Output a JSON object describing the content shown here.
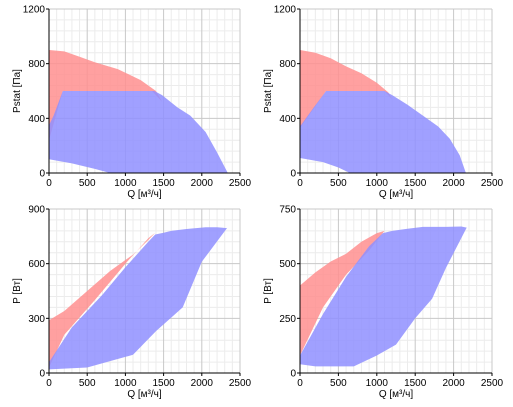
{
  "colors": {
    "red_fill": "#ff8f8f",
    "blue_fill": "#8f8fff",
    "grid_major": "#c8c8c8",
    "grid_minor": "#ececec",
    "axis": "#000000"
  },
  "chart_data": [
    {
      "type": "area",
      "xlabel": "Q [м³/ч]",
      "ylabel": "Pstat [Па]",
      "xlim": [
        0,
        2500
      ],
      "ylim": [
        0,
        1200
      ],
      "xticks": [
        0,
        500,
        1000,
        1500,
        2000,
        2500
      ],
      "yticks": [
        0,
        400,
        800,
        1200
      ],
      "grid": true,
      "series": [
        {
          "color": "red",
          "points": [
            [
              0,
              900
            ],
            [
              200,
              890
            ],
            [
              400,
              850
            ],
            [
              600,
              810
            ],
            [
              900,
              760
            ],
            [
              1200,
              680
            ],
            [
              1400,
              600
            ],
            [
              1480,
              520
            ],
            [
              1350,
              600
            ],
            [
              180,
              600
            ],
            [
              0,
              240
            ]
          ]
        },
        {
          "color": "blue",
          "points": [
            [
              0,
              100
            ],
            [
              300,
              70
            ],
            [
              600,
              30
            ],
            [
              800,
              0
            ],
            [
              2340,
              0
            ],
            [
              2200,
              150
            ],
            [
              2050,
              300
            ],
            [
              1850,
              420
            ],
            [
              1680,
              480
            ],
            [
              1480,
              570
            ],
            [
              1380,
              600
            ],
            [
              180,
              600
            ],
            [
              60,
              420
            ],
            [
              0,
              350
            ]
          ]
        }
      ]
    },
    {
      "type": "area",
      "xlabel": "Q [м³/ч]",
      "ylabel": "Pstat [Па]",
      "xlim": [
        0,
        2500
      ],
      "ylim": [
        0,
        1200
      ],
      "xticks": [
        0,
        500,
        1000,
        1500,
        2000,
        2500
      ],
      "yticks": [
        0,
        400,
        800,
        1200
      ],
      "grid": true,
      "series": [
        {
          "color": "red",
          "points": [
            [
              0,
              900
            ],
            [
              200,
              880
            ],
            [
              400,
              840
            ],
            [
              600,
              780
            ],
            [
              800,
              730
            ],
            [
              1000,
              660
            ],
            [
              1150,
              590
            ],
            [
              1200,
              540
            ],
            [
              1100,
              600
            ],
            [
              340,
              600
            ],
            [
              0,
              330
            ]
          ]
        },
        {
          "color": "blue",
          "points": [
            [
              0,
              110
            ],
            [
              300,
              80
            ],
            [
              500,
              40
            ],
            [
              650,
              0
            ],
            [
              2160,
              0
            ],
            [
              2080,
              130
            ],
            [
              1950,
              250
            ],
            [
              1800,
              340
            ],
            [
              1600,
              420
            ],
            [
              1400,
              500
            ],
            [
              1200,
              570
            ],
            [
              1100,
              600
            ],
            [
              340,
              600
            ],
            [
              180,
              480
            ],
            [
              0,
              340
            ]
          ]
        }
      ]
    },
    {
      "type": "area",
      "xlabel": "Q [м³/ч]",
      "ylabel": "P [Вт]",
      "xlim": [
        0,
        2500
      ],
      "ylim": [
        0,
        900
      ],
      "xticks": [
        0,
        500,
        1000,
        1500,
        2000,
        2500
      ],
      "yticks": [
        0,
        300,
        600,
        900
      ],
      "grid": true,
      "series": [
        {
          "color": "red",
          "points": [
            [
              0,
              290
            ],
            [
              200,
              340
            ],
            [
              500,
              450
            ],
            [
              800,
              560
            ],
            [
              1100,
              650
            ],
            [
              1300,
              730
            ],
            [
              1390,
              770
            ],
            [
              1300,
              740
            ],
            [
              1000,
              600
            ],
            [
              600,
              400
            ],
            [
              200,
              210
            ],
            [
              0,
              30
            ]
          ]
        },
        {
          "color": "blue",
          "points": [
            [
              0,
              20
            ],
            [
              500,
              30
            ],
            [
              1100,
              100
            ],
            [
              1400,
              230
            ],
            [
              1750,
              360
            ],
            [
              2000,
              610
            ],
            [
              2330,
              795
            ],
            [
              2200,
              800
            ],
            [
              2050,
              800
            ],
            [
              1800,
              790
            ],
            [
              1600,
              780
            ],
            [
              1500,
              770
            ],
            [
              1390,
              760
            ],
            [
              1300,
              720
            ],
            [
              1000,
              580
            ],
            [
              700,
              430
            ],
            [
              300,
              250
            ],
            [
              0,
              60
            ]
          ]
        }
      ]
    },
    {
      "type": "area",
      "xlabel": "Q [м³/ч]",
      "ylabel": "P [Вт]",
      "xlim": [
        0,
        2500
      ],
      "ylim": [
        0,
        750
      ],
      "xticks": [
        0,
        500,
        1000,
        1500,
        2000,
        2500
      ],
      "yticks": [
        0,
        250,
        500,
        750
      ],
      "grid": true,
      "series": [
        {
          "color": "red",
          "points": [
            [
              0,
              400
            ],
            [
              200,
              460
            ],
            [
              400,
              510
            ],
            [
              600,
              545
            ],
            [
              800,
              600
            ],
            [
              1000,
              640
            ],
            [
              1100,
              650
            ],
            [
              900,
              560
            ],
            [
              600,
              450
            ],
            [
              300,
              300
            ],
            [
              0,
              80
            ]
          ]
        },
        {
          "color": "blue",
          "points": [
            [
              0,
              40
            ],
            [
              200,
              30
            ],
            [
              700,
              30
            ],
            [
              1000,
              80
            ],
            [
              1250,
              130
            ],
            [
              1500,
              250
            ],
            [
              1720,
              340
            ],
            [
              1900,
              480
            ],
            [
              2170,
              665
            ],
            [
              2100,
              670
            ],
            [
              1900,
              668
            ],
            [
              1600,
              668
            ],
            [
              1400,
              660
            ],
            [
              1200,
              650
            ],
            [
              1080,
              640
            ],
            [
              900,
              580
            ],
            [
              600,
              440
            ],
            [
              300,
              270
            ],
            [
              0,
              80
            ]
          ]
        }
      ]
    }
  ]
}
